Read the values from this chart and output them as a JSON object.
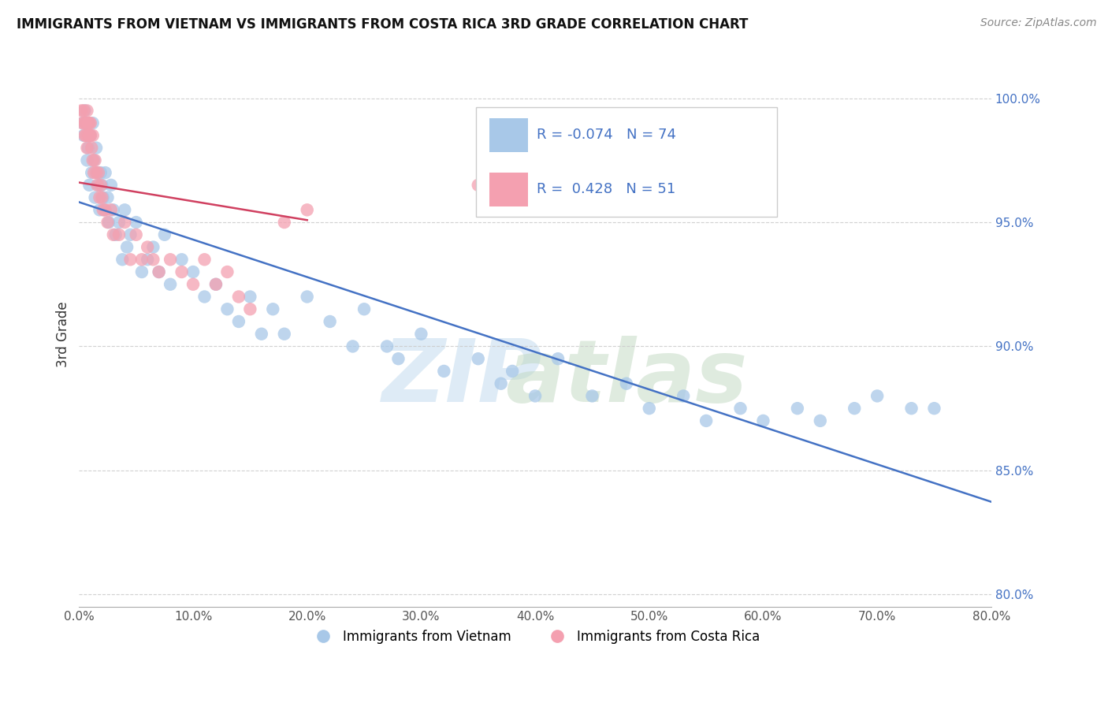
{
  "title": "IMMIGRANTS FROM VIETNAM VS IMMIGRANTS FROM COSTA RICA 3RD GRADE CORRELATION CHART",
  "source": "Source: ZipAtlas.com",
  "ylabel": "3rd Grade",
  "xlim": [
    0.0,
    80.0
  ],
  "ylim": [
    79.5,
    101.5
  ],
  "legend1_label": "Immigrants from Vietnam",
  "legend2_label": "Immigrants from Costa Rica",
  "R_vietnam": -0.074,
  "N_vietnam": 74,
  "R_costarica": 0.428,
  "N_costarica": 51,
  "color_vietnam": "#a8c8e8",
  "color_costarica": "#f4a0b0",
  "line_color_vietnam": "#4472c4",
  "line_color_costarica": "#d04060",
  "background_color": "#ffffff",
  "vietnam_x": [
    0.3,
    0.4,
    0.5,
    0.6,
    0.7,
    0.8,
    0.9,
    1.0,
    1.1,
    1.2,
    1.3,
    1.4,
    1.5,
    1.6,
    1.7,
    1.8,
    1.9,
    2.0,
    2.1,
    2.2,
    2.3,
    2.5,
    2.6,
    2.8,
    3.0,
    3.2,
    3.5,
    3.8,
    4.0,
    4.2,
    4.5,
    5.0,
    5.5,
    6.0,
    6.5,
    7.0,
    7.5,
    8.0,
    9.0,
    10.0,
    11.0,
    12.0,
    13.0,
    14.0,
    15.0,
    16.0,
    17.0,
    18.0,
    20.0,
    22.0,
    24.0,
    25.0,
    27.0,
    28.0,
    30.0,
    32.0,
    35.0,
    37.0,
    38.0,
    40.0,
    42.0,
    45.0,
    48.0,
    50.0,
    53.0,
    55.0,
    58.0,
    60.0,
    63.0,
    65.0,
    68.0,
    70.0,
    73.0,
    75.0
  ],
  "vietnam_y": [
    99.0,
    98.5,
    99.5,
    99.0,
    97.5,
    98.0,
    96.5,
    98.5,
    97.0,
    99.0,
    97.5,
    96.0,
    98.0,
    97.0,
    96.5,
    95.5,
    97.0,
    96.5,
    96.0,
    95.5,
    97.0,
    96.0,
    95.0,
    96.5,
    95.5,
    94.5,
    95.0,
    93.5,
    95.5,
    94.0,
    94.5,
    95.0,
    93.0,
    93.5,
    94.0,
    93.0,
    94.5,
    92.5,
    93.5,
    93.0,
    92.0,
    92.5,
    91.5,
    91.0,
    92.0,
    90.5,
    91.5,
    90.5,
    92.0,
    91.0,
    90.0,
    91.5,
    90.0,
    89.5,
    90.5,
    89.0,
    89.5,
    88.5,
    89.0,
    88.0,
    89.5,
    88.0,
    88.5,
    87.5,
    88.0,
    87.0,
    87.5,
    87.0,
    87.5,
    87.0,
    87.5,
    88.0,
    87.5,
    87.5
  ],
  "costarica_x": [
    0.2,
    0.3,
    0.4,
    0.5,
    0.5,
    0.6,
    0.6,
    0.7,
    0.7,
    0.8,
    0.8,
    0.9,
    0.9,
    1.0,
    1.0,
    1.1,
    1.2,
    1.2,
    1.3,
    1.4,
    1.5,
    1.6,
    1.7,
    1.8,
    1.9,
    2.0,
    2.1,
    2.3,
    2.5,
    2.8,
    3.0,
    3.5,
    4.0,
    4.5,
    5.0,
    5.5,
    6.0,
    6.5,
    7.0,
    8.0,
    9.0,
    10.0,
    11.0,
    12.0,
    13.0,
    14.0,
    15.0,
    18.0,
    20.0,
    35.0,
    55.0
  ],
  "costarica_y": [
    99.5,
    99.0,
    99.5,
    98.5,
    99.0,
    99.0,
    98.5,
    99.5,
    98.0,
    99.0,
    98.5,
    99.0,
    98.5,
    99.0,
    98.5,
    98.0,
    98.5,
    97.5,
    97.0,
    97.5,
    97.0,
    96.5,
    97.0,
    96.0,
    96.5,
    96.0,
    95.5,
    95.5,
    95.0,
    95.5,
    94.5,
    94.5,
    95.0,
    93.5,
    94.5,
    93.5,
    94.0,
    93.5,
    93.0,
    93.5,
    93.0,
    92.5,
    93.5,
    92.5,
    93.0,
    92.0,
    91.5,
    95.0,
    95.5,
    96.5,
    97.5
  ]
}
